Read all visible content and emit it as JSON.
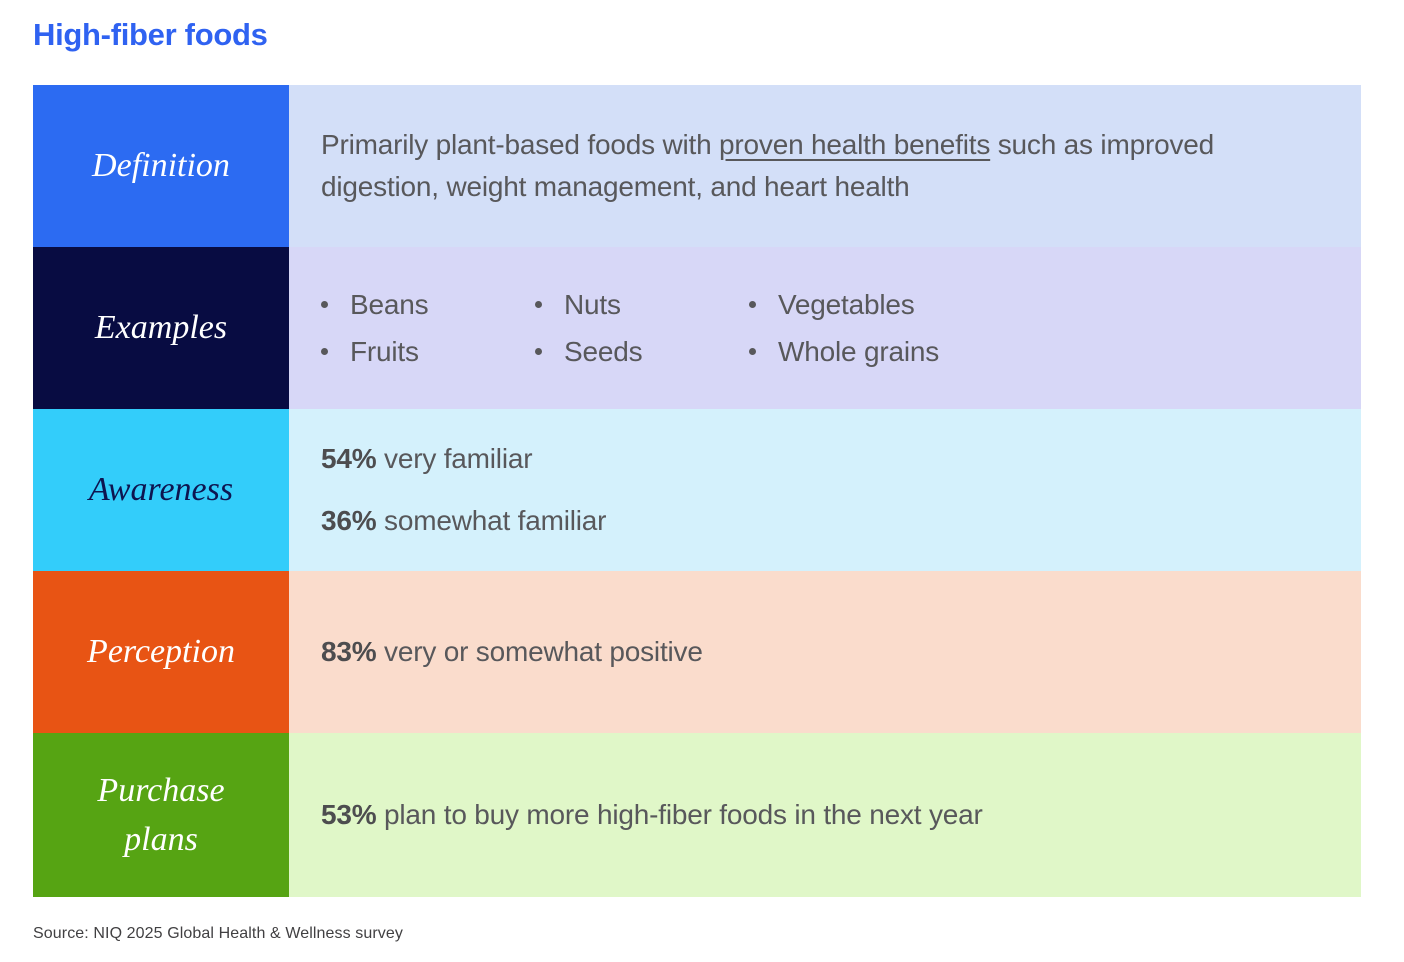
{
  "title": "High-fiber foods",
  "theme": {
    "page_bg": "#ffffff",
    "title_color": "#2f62f1",
    "body_text_color": "#58585b",
    "stat_value_color": "#4d4d4f",
    "source_color": "#414042"
  },
  "rows": [
    {
      "label": "Definition",
      "label_bg": "#2c6bf2",
      "label_text_color": "#ffffff",
      "content_bg": "#d3dff8",
      "text_before": "Primarily plant-based foods with ",
      "underlined_phrase": "proven health benefits",
      "text_after": " such as improved digestion, weight management, and heart health"
    },
    {
      "label": "Examples",
      "label_bg": "#080c42",
      "label_text_color": "#ffffff",
      "content_bg": "#d7d7f7",
      "columns": [
        [
          "Beans",
          "Fruits"
        ],
        [
          "Nuts",
          "Seeds"
        ],
        [
          "Vegetables",
          "Whole grains"
        ]
      ]
    },
    {
      "label": "Awareness",
      "label_bg": "#33cdfa",
      "label_text_color": "#0d1550",
      "content_bg": "#d4f1fc",
      "stats": [
        {
          "value": "54%",
          "text": " very familiar"
        },
        {
          "value": "36%",
          "text": " somewhat familiar"
        }
      ]
    },
    {
      "label": "Perception",
      "label_bg": "#e85414",
      "label_text_color": "#ffffff",
      "content_bg": "#fadccc",
      "stats": [
        {
          "value": "83%",
          "text": " very or somewhat positive"
        }
      ]
    },
    {
      "label": "Purchase plans",
      "label_bg": "#56a413",
      "label_text_color": "#ffffff",
      "content_bg": "#e0f7c8",
      "stats": [
        {
          "value": "53%",
          "text": " plan to buy more high-fiber foods in the next year"
        }
      ]
    }
  ],
  "source": "Source: NIQ 2025 Global Health & Wellness survey"
}
